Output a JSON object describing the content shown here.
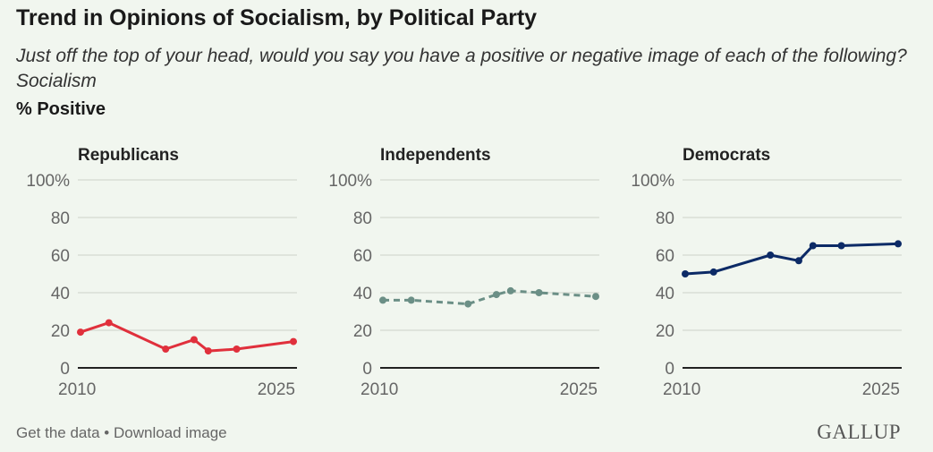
{
  "title": "Trend in Opinions of Socialism, by Political Party",
  "subtitle": "Just off the top of your head, would you say you have a positive or negative image of each of the following? Socialism",
  "unit_label": "% Positive",
  "footer": {
    "get_data": "Get the data",
    "separator": " • ",
    "download": "Download image"
  },
  "logo": "GALLUP",
  "chart_data": [
    {
      "type": "line",
      "title": "Republicans",
      "color": "#e0303c",
      "dashed": false,
      "x": [
        2010,
        2012,
        2016,
        2018,
        2019,
        2021,
        2025
      ],
      "values": [
        19,
        24,
        10,
        15,
        9,
        10,
        14
      ],
      "ylim": [
        0,
        100
      ],
      "xlim": [
        2010,
        2025
      ],
      "yticks": [
        "0",
        "20",
        "40",
        "60",
        "80",
        "100%"
      ],
      "xticks": [
        "2010",
        "2025"
      ],
      "grid": true
    },
    {
      "type": "line",
      "title": "Independents",
      "color": "#6b8f86",
      "dashed": true,
      "x": [
        2010,
        2012,
        2016,
        2018,
        2019,
        2021,
        2025
      ],
      "values": [
        36,
        36,
        34,
        39,
        41,
        40,
        38
      ],
      "ylim": [
        0,
        100
      ],
      "xlim": [
        2010,
        2025
      ],
      "yticks": [
        "0",
        "20",
        "40",
        "60",
        "80",
        "100%"
      ],
      "xticks": [
        "2010",
        "2025"
      ],
      "grid": true
    },
    {
      "type": "line",
      "title": "Democrats",
      "color": "#0c2a66",
      "dashed": false,
      "x": [
        2010,
        2012,
        2016,
        2018,
        2019,
        2021,
        2025
      ],
      "values": [
        50,
        51,
        60,
        57,
        65,
        65,
        66
      ],
      "ylim": [
        0,
        100
      ],
      "xlim": [
        2010,
        2025
      ],
      "yticks": [
        "0",
        "20",
        "40",
        "60",
        "80",
        "100%"
      ],
      "xticks": [
        "2010",
        "2025"
      ],
      "grid": true
    }
  ]
}
